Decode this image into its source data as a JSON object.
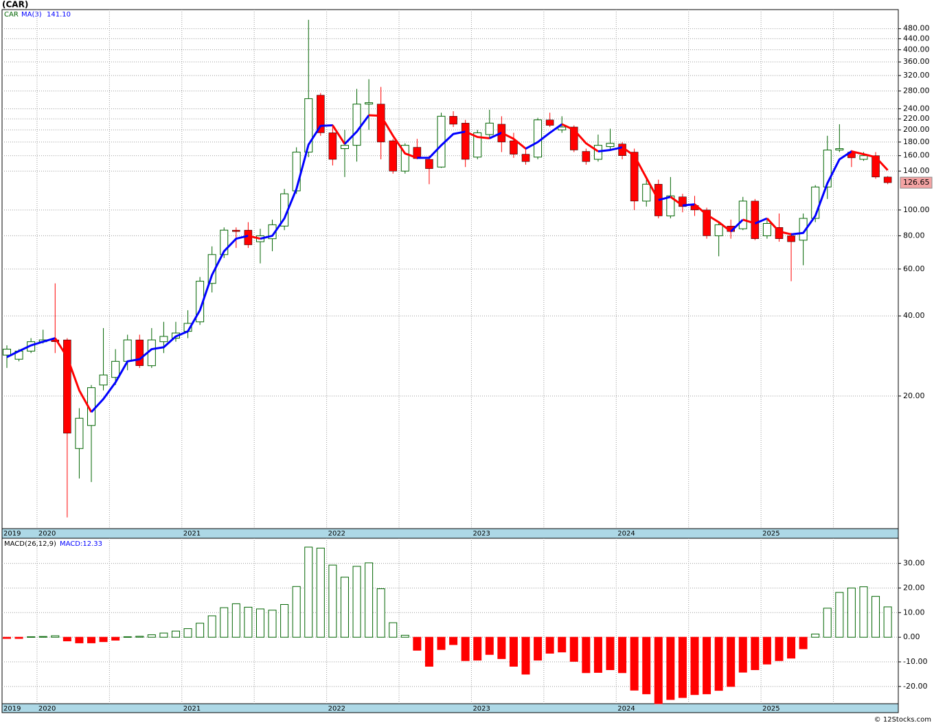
{
  "title": "(CAR)",
  "footer": "© 12Stocks.com",
  "chart_data": [
    {
      "type": "candlestick",
      "name": "CAR",
      "log": true,
      "grid": true,
      "up_color": "#006400",
      "down_color": "#ff0000",
      "categories": [
        "2019",
        null,
        null,
        "2020",
        null,
        null,
        null,
        null,
        null,
        null,
        null,
        null,
        null,
        null,
        null,
        "2021",
        null,
        null,
        null,
        null,
        null,
        null,
        null,
        null,
        null,
        null,
        null,
        "2022",
        null,
        null,
        null,
        null,
        null,
        null,
        null,
        null,
        null,
        null,
        null,
        "2023",
        null,
        null,
        null,
        null,
        null,
        null,
        null,
        null,
        null,
        null,
        null,
        "2024",
        null,
        null,
        null,
        null,
        null,
        null,
        null,
        null,
        null,
        null,
        null,
        "2025",
        null,
        null,
        null,
        null,
        null,
        null,
        null,
        null,
        null,
        null
      ],
      "open": [
        28.5,
        27.5,
        29.5,
        32,
        32.5,
        32.5,
        12.7,
        15.5,
        22,
        23.5,
        27,
        32.5,
        26,
        32,
        33,
        35,
        38,
        53,
        68,
        84,
        84,
        76,
        78,
        87,
        118,
        165,
        270,
        195,
        170,
        175,
        250,
        250,
        182,
        140,
        172,
        155,
        145,
        225,
        212,
        158,
        192,
        210,
        182,
        162,
        158,
        218,
        200,
        205,
        166,
        155,
        173,
        177,
        165,
        108,
        125,
        95,
        112,
        104,
        100,
        80,
        87,
        85,
        108,
        80,
        86,
        80,
        77,
        93,
        122,
        168,
        165,
        155,
        160,
        133
      ],
      "high": [
        31,
        30,
        33,
        35.5,
        53,
        33,
        18,
        22,
        36,
        30,
        34,
        34,
        36,
        38,
        38,
        42,
        56,
        73,
        86,
        86,
        90,
        85,
        92,
        120,
        172,
        518,
        275,
        210,
        200,
        285,
        310,
        290,
        185,
        178,
        185,
        160,
        232,
        235,
        218,
        200,
        238,
        225,
        195,
        170,
        222,
        232,
        225,
        208,
        170,
        192,
        202,
        180,
        170,
        130,
        130,
        133,
        115,
        113,
        102,
        90,
        92,
        112,
        110,
        92,
        97,
        82,
        97,
        124,
        190,
        210,
        168,
        165,
        165,
        134
      ],
      "low": [
        25.5,
        27,
        29,
        31.5,
        29,
        7,
        9.8,
        9.5,
        21,
        22,
        25,
        25.5,
        25.5,
        29,
        32,
        33,
        37,
        49,
        66,
        72,
        72,
        63,
        70,
        84,
        115,
        158,
        190,
        147,
        133,
        152,
        200,
        155,
        137,
        137,
        155,
        125,
        144,
        205,
        145,
        155,
        185,
        165,
        157,
        148,
        155,
        205,
        195,
        165,
        148,
        152,
        168,
        155,
        100,
        103,
        93,
        93,
        98,
        95,
        78,
        67,
        78,
        84,
        77,
        78,
        76,
        54,
        62,
        90,
        110,
        165,
        145,
        153,
        131,
        125
      ],
      "close": [
        30,
        29.5,
        32,
        32.5,
        32,
        14.5,
        16.5,
        21.5,
        24,
        27,
        32.5,
        26,
        32.5,
        33.5,
        34.5,
        37.5,
        54,
        68,
        84,
        83,
        74,
        80,
        88,
        115,
        165,
        262,
        195,
        155,
        175,
        250,
        253,
        180,
        140,
        175,
        156,
        143,
        225,
        210,
        155,
        195,
        212,
        180,
        162,
        152,
        218,
        208,
        205,
        168,
        152,
        175,
        178,
        160,
        108,
        125,
        95,
        113,
        103,
        100,
        80,
        88,
        83,
        108,
        78,
        89,
        78,
        76,
        93,
        122,
        168,
        170,
        157,
        160,
        133,
        126.65
      ],
      "ma": {
        "name": "MA(3)",
        "label": "141.10",
        "up_color": "#0000ff",
        "down_color": "#ff0000",
        "values": [
          28,
          29.5,
          31,
          32,
          33,
          28,
          21,
          17.4,
          19.5,
          22.5,
          27,
          27.5,
          30,
          30.5,
          33.5,
          35,
          42,
          57,
          70,
          78,
          80,
          78,
          80,
          93,
          120,
          176,
          207,
          208,
          177,
          197,
          227,
          226,
          190,
          163,
          157,
          157,
          175,
          193,
          197,
          188,
          186,
          195,
          185,
          170,
          180,
          195,
          210,
          200,
          178,
          166,
          168,
          172,
          160,
          132,
          109,
          112,
          104,
          105,
          96,
          90,
          83,
          92,
          89,
          93,
          83,
          81,
          82,
          95,
          126,
          155,
          166,
          162,
          158,
          141.1
        ]
      },
      "ylim": [
        6.35,
        566
      ],
      "yticks": [
        {
          "value": 20,
          "label": "20.00"
        },
        {
          "value": 40,
          "label": "40.00"
        },
        {
          "value": 60,
          "label": "60.00"
        },
        {
          "value": 80,
          "label": "80.00"
        },
        {
          "value": 100,
          "label": "100.00"
        },
        {
          "value": 140,
          "label": "140.00"
        },
        {
          "value": 160,
          "label": "160.00"
        },
        {
          "value": 180,
          "label": "180.00"
        },
        {
          "value": 200,
          "label": "200.00"
        },
        {
          "value": 220,
          "label": "220.00"
        },
        {
          "value": 240,
          "label": "240.00"
        },
        {
          "value": 280,
          "label": "280.00"
        },
        {
          "value": 320,
          "label": "320.00"
        },
        {
          "value": 360,
          "label": "360.00"
        },
        {
          "value": 400,
          "label": "400.00"
        },
        {
          "value": 440,
          "label": "440.00"
        },
        {
          "value": 480,
          "label": "480.00"
        }
      ]
    },
    {
      "type": "bar",
      "name": "MACD(26,12,9)",
      "label": "MACD:12.33",
      "up_color": "#006400",
      "down_color": "#ff0000",
      "grid": true,
      "values": [
        -0.5,
        -0.5,
        0.2,
        0.3,
        0.6,
        -1.5,
        -2.3,
        -2.3,
        -1.8,
        -1.2,
        0.2,
        0.4,
        1.0,
        1.7,
        2.5,
        3.5,
        5.7,
        8.7,
        12,
        13.6,
        12.2,
        11.5,
        11,
        13.3,
        20.6,
        36.6,
        36.2,
        29.3,
        24.4,
        28.8,
        30.2,
        19.7,
        5.9,
        0.8,
        -5.3,
        -11.8,
        -5,
        -3,
        -9.5,
        -9.3,
        -7,
        -8.7,
        -11.8,
        -15,
        -9.3,
        -6.5,
        -6,
        -9.8,
        -14.4,
        -14.3,
        -13.2,
        -14.4,
        -21.5,
        -23,
        -27,
        -25.3,
        -24.5,
        -23.3,
        -23,
        -21.6,
        -20,
        -14.2,
        -13.2,
        -10.9,
        -9.5,
        -8.5,
        -4.7,
        1.3,
        11.8,
        18.2,
        20,
        20.5,
        16.6,
        12.33
      ],
      "ylim": [
        -27,
        40.2
      ],
      "yticks": [
        {
          "value": -20,
          "label": "-20.00"
        },
        {
          "value": -10,
          "label": "-10.00"
        },
        {
          "value": 0,
          "label": "0.00"
        },
        {
          "value": 10,
          "label": "10.00"
        },
        {
          "value": 20,
          "label": "20.00"
        },
        {
          "value": 30,
          "label": "30.00"
        }
      ]
    }
  ]
}
